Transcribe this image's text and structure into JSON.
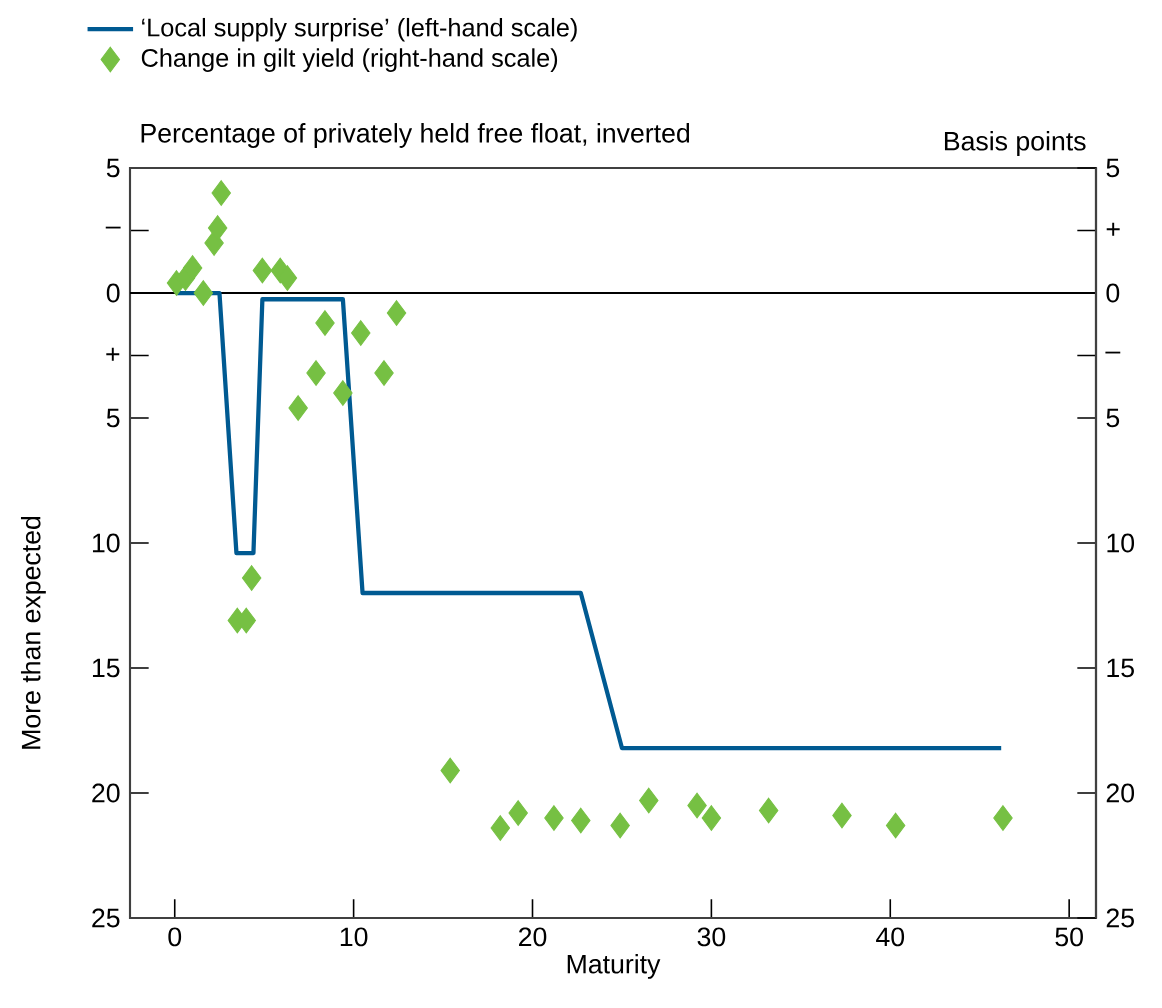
{
  "chart_data": {
    "type": "line",
    "title": "Percentage of privately held free float, inverted",
    "ylabel": "More than expected",
    "y2label": "Basis points",
    "xlabel": "Maturity",
    "series": [
      {
        "name": "‘Local supply surprise’ (left-hand scale)",
        "marker": "none",
        "color": "#005a92",
        "x": [
          0.1,
          2.5,
          3.45,
          4.4,
          4.9,
          9.4,
          10.5,
          22.7,
          25.0,
          46.2
        ],
        "values": [
          0,
          0,
          10.4,
          10.4,
          0.25,
          0.25,
          12,
          12,
          18.2,
          18.2
        ]
      },
      {
        "name": "Change in gilt yield (right-hand scale)",
        "type": "scatter",
        "axis": "y2",
        "marker": "diamond",
        "color": "#76c043",
        "x": [
          0.1,
          0.6,
          1.0,
          1.6,
          2.2,
          2.4,
          2.6,
          3.5,
          4.0,
          4.3,
          4.9,
          5.9,
          6.3,
          6.9,
          7.9,
          8.4,
          9.4,
          10.4,
          11.7,
          12.4,
          15.4,
          18.2,
          19.2,
          21.2,
          22.7,
          24.9,
          26.5,
          29.2,
          30.0,
          33.2,
          37.3,
          40.3,
          46.3
        ],
        "values": [
          0.4,
          0.6,
          1.0,
          0.0,
          2.0,
          2.6,
          4.0,
          -13.1,
          -13.1,
          -11.4,
          0.9,
          0.9,
          0.6,
          -4.6,
          -3.2,
          -1.2,
          -4.0,
          -1.6,
          -3.2,
          -0.8,
          -19.1,
          -21.4,
          -20.8,
          -21.0,
          -21.1,
          -21.3,
          -20.3,
          -20.5,
          -21.0,
          -20.7,
          -20.9,
          -21.3,
          -21.0
        ]
      }
    ],
    "xlim": [
      -2.5,
      51.5
    ],
    "xticks": [
      0,
      10,
      20,
      30,
      40,
      50
    ],
    "ylim": [
      25,
      -5
    ],
    "yticks": [
      {
        "value": -5,
        "label": "5"
      },
      {
        "value": -2.5,
        "label": "–"
      },
      0,
      {
        "value": 2.5,
        "label": "+"
      },
      5,
      10,
      15,
      20,
      25
    ],
    "y2lim": [
      -25,
      5
    ],
    "y2ticks": [
      {
        "value": -25,
        "label": "25"
      },
      {
        "value": -20,
        "label": "20"
      },
      {
        "value": -15,
        "label": "15"
      },
      {
        "value": -10,
        "label": "10"
      },
      {
        "value": -5,
        "label": "5"
      },
      {
        "value": -2.5,
        "label": "–"
      },
      0,
      {
        "value": 2.5,
        "label": "+"
      },
      5
    ],
    "ref_lines": [
      {
        "axis": "y",
        "value": 0,
        "color": "#000000"
      }
    ],
    "legend": "top left",
    "grid": false
  }
}
